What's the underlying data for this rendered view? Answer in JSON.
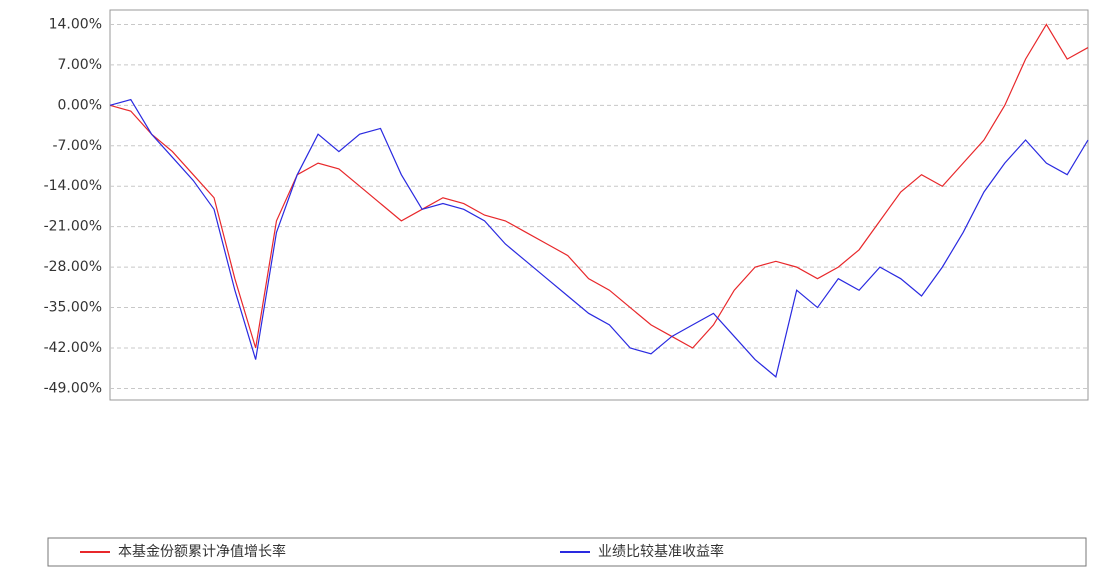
{
  "chart_data": {
    "type": "line",
    "ylim": [
      -51,
      16.5
    ],
    "yticks": [
      {
        "value": 14,
        "label": "14.00%"
      },
      {
        "value": 7,
        "label": "7.00%"
      },
      {
        "value": 0,
        "label": "0.00%"
      },
      {
        "value": -7,
        "label": "-7.00%"
      },
      {
        "value": -14,
        "label": "-14.00%"
      },
      {
        "value": -21,
        "label": "-21.00%"
      },
      {
        "value": -28,
        "label": "-28.00%"
      },
      {
        "value": -35,
        "label": "-35.00%"
      },
      {
        "value": -42,
        "label": "-42.00%"
      },
      {
        "value": -49,
        "label": "-49.00%"
      }
    ],
    "grid": true,
    "series": [
      {
        "name": "本基金份额累计净值增长率",
        "color": "#e8282b",
        "values": [
          0,
          -1,
          -5,
          -8,
          -12,
          -16,
          -30,
          -42,
          -20,
          -12,
          -10,
          -11,
          -14,
          -17,
          -20,
          -18,
          -16,
          -17,
          -19,
          -20,
          -22,
          -24,
          -26,
          -30,
          -32,
          -35,
          -38,
          -40,
          -42,
          -38,
          -32,
          -28,
          -27,
          -28,
          -30,
          -28,
          -25,
          -20,
          -15,
          -12,
          -14,
          -10,
          -6,
          0,
          8,
          14,
          8,
          10
        ]
      },
      {
        "name": "业绩比较基准收益率",
        "color": "#2a2ae0",
        "values": [
          0,
          1,
          -5,
          -9,
          -13,
          -18,
          -32,
          -44,
          -22,
          -12,
          -5,
          -8,
          -5,
          -4,
          -12,
          -18,
          -17,
          -18,
          -20,
          -24,
          -27,
          -30,
          -33,
          -36,
          -38,
          -42,
          -43,
          -40,
          -38,
          -36,
          -40,
          -44,
          -47,
          -32,
          -35,
          -30,
          -32,
          -28,
          -30,
          -33,
          -28,
          -22,
          -15,
          -10,
          -6,
          -10,
          -12,
          -6
        ]
      }
    ]
  }
}
